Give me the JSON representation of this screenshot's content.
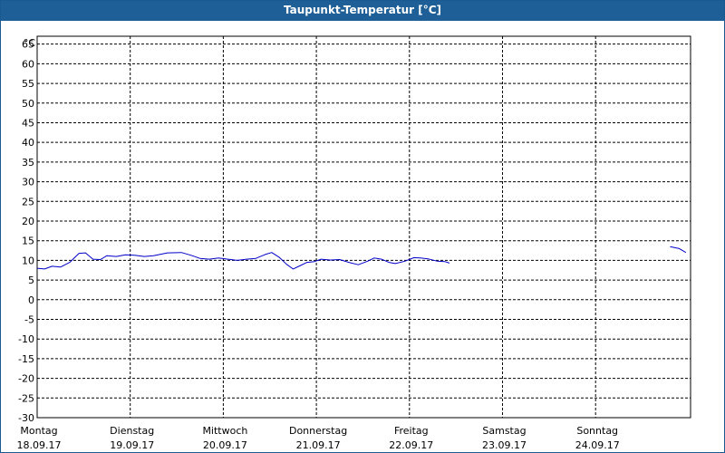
{
  "window": {
    "title": "Taupunkt-Temperatur [°C]"
  },
  "chart_data": {
    "type": "line",
    "title": "Taupunkt-Temperatur [°C]",
    "ylabel": "°C",
    "xlabel": "",
    "ylim": [
      -30,
      67
    ],
    "yticks": [
      65,
      60,
      55,
      50,
      45,
      40,
      35,
      30,
      25,
      20,
      15,
      10,
      5,
      0,
      -5,
      -10,
      -15,
      -20,
      -25,
      -30
    ],
    "days": [
      {
        "name": "Montag",
        "date": "18.09.17"
      },
      {
        "name": "Dienstag",
        "date": "19.09.17"
      },
      {
        "name": "Mittwoch",
        "date": "20.09.17"
      },
      {
        "name": "Donnerstag",
        "date": "21.09.17"
      },
      {
        "name": "Freitag",
        "date": "22.09.17"
      },
      {
        "name": "Samstag",
        "date": "23.09.17"
      },
      {
        "name": "Sonntag",
        "date": "24.09.17"
      }
    ],
    "grid": true,
    "series": [
      {
        "color": "#0000c8",
        "segments": [
          [
            {
              "day": 0.0,
              "y": 8.0
            },
            {
              "day": 0.08,
              "y": 7.8
            },
            {
              "day": 0.16,
              "y": 8.5
            },
            {
              "day": 0.25,
              "y": 8.3
            },
            {
              "day": 0.35,
              "y": 9.5
            },
            {
              "day": 0.45,
              "y": 11.8
            },
            {
              "day": 0.52,
              "y": 11.9
            },
            {
              "day": 0.6,
              "y": 10.3
            },
            {
              "day": 0.68,
              "y": 10.2
            },
            {
              "day": 0.75,
              "y": 11.2
            },
            {
              "day": 0.85,
              "y": 11.0
            },
            {
              "day": 0.95,
              "y": 11.4
            },
            {
              "day": 1.05,
              "y": 11.3
            },
            {
              "day": 1.15,
              "y": 11.0
            },
            {
              "day": 1.25,
              "y": 11.2
            },
            {
              "day": 1.4,
              "y": 11.9
            },
            {
              "day": 1.55,
              "y": 12.0
            },
            {
              "day": 1.65,
              "y": 11.3
            },
            {
              "day": 1.75,
              "y": 10.5
            },
            {
              "day": 1.85,
              "y": 10.3
            },
            {
              "day": 1.95,
              "y": 10.6
            },
            {
              "day": 2.05,
              "y": 10.3
            },
            {
              "day": 2.15,
              "y": 10.0
            },
            {
              "day": 2.25,
              "y": 10.3
            },
            {
              "day": 2.35,
              "y": 10.5
            },
            {
              "day": 2.45,
              "y": 11.5
            },
            {
              "day": 2.52,
              "y": 12.0
            },
            {
              "day": 2.6,
              "y": 10.8
            },
            {
              "day": 2.68,
              "y": 9.0
            },
            {
              "day": 2.75,
              "y": 7.8
            },
            {
              "day": 2.82,
              "y": 8.6
            },
            {
              "day": 2.9,
              "y": 9.5
            },
            {
              "day": 2.98,
              "y": 9.7
            },
            {
              "day": 3.05,
              "y": 10.3
            },
            {
              "day": 3.15,
              "y": 10.1
            },
            {
              "day": 3.25,
              "y": 10.2
            },
            {
              "day": 3.35,
              "y": 9.5
            },
            {
              "day": 3.45,
              "y": 8.9
            },
            {
              "day": 3.55,
              "y": 9.8
            },
            {
              "day": 3.62,
              "y": 10.6
            },
            {
              "day": 3.7,
              "y": 10.3
            },
            {
              "day": 3.78,
              "y": 9.5
            },
            {
              "day": 3.85,
              "y": 9.2
            },
            {
              "day": 3.95,
              "y": 9.8
            },
            {
              "day": 4.05,
              "y": 10.7
            },
            {
              "day": 4.12,
              "y": 10.6
            },
            {
              "day": 4.2,
              "y": 10.4
            },
            {
              "day": 4.3,
              "y": 9.8
            },
            {
              "day": 4.38,
              "y": 9.7
            },
            {
              "day": 4.43,
              "y": 9.3
            }
          ],
          [
            {
              "day": 6.8,
              "y": 13.5
            },
            {
              "day": 6.9,
              "y": 13.0
            },
            {
              "day": 6.97,
              "y": 12.0
            }
          ]
        ]
      }
    ]
  }
}
